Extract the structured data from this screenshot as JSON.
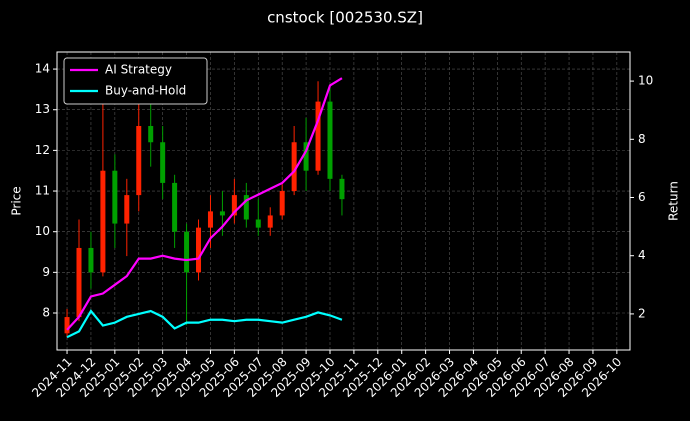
{
  "chart_data": {
    "type": "candlestick",
    "title": "cnstock [002530.SZ]",
    "ylabel": "Price",
    "y2label": "Return",
    "background": "#000000",
    "text_color": "#ffffff",
    "grid": true,
    "legend": "upper left",
    "up_color": "#ff2200",
    "down_color": "#00a000",
    "xlim": [
      -0.42,
      23.55
    ],
    "xticks": [
      {
        "value": 0,
        "label": "2024-11"
      },
      {
        "value": 1,
        "label": "2024-12"
      },
      {
        "value": 2,
        "label": "2025-01"
      },
      {
        "value": 3,
        "label": "2025-02"
      },
      {
        "value": 4,
        "label": "2025-03"
      },
      {
        "value": 5,
        "label": "2025-04"
      },
      {
        "value": 6,
        "label": "2025-05"
      },
      {
        "value": 7,
        "label": "2025-06"
      },
      {
        "value": 8,
        "label": "2025-07"
      },
      {
        "value": 9,
        "label": "2025-08"
      },
      {
        "value": 10,
        "label": "2025-09"
      },
      {
        "value": 11,
        "label": "2025-10"
      },
      {
        "value": 12,
        "label": "2025-11"
      },
      {
        "value": 13,
        "label": "2025-12"
      },
      {
        "value": 14,
        "label": "2026-01"
      },
      {
        "value": 15,
        "label": "2026-02"
      },
      {
        "value": 16,
        "label": "2026-03"
      },
      {
        "value": 17,
        "label": "2026-04"
      },
      {
        "value": 18,
        "label": "2026-05"
      },
      {
        "value": 19,
        "label": "2026-06"
      },
      {
        "value": 20,
        "label": "2026-07"
      },
      {
        "value": 21,
        "label": "2026-08"
      },
      {
        "value": 22,
        "label": "2026-09"
      },
      {
        "value": 23,
        "label": "2026-10"
      }
    ],
    "ylim": [
      7.09,
      14.42
    ],
    "yticks": [
      8,
      9,
      10,
      11,
      12,
      13,
      14
    ],
    "y2lim": [
      0.76,
      11.0
    ],
    "y2ticks": [
      2,
      4,
      6,
      8,
      10
    ],
    "x": [
      0,
      0.5,
      1,
      1.5,
      2,
      2.5,
      3,
      3.5,
      4,
      4.5,
      5,
      5.5,
      6,
      6.5,
      7,
      7.5,
      8,
      8.5,
      9,
      9.5,
      10,
      10.5,
      11,
      11.5
    ],
    "open": [
      7.5,
      7.9,
      9.6,
      9.0,
      11.5,
      10.2,
      10.9,
      12.6,
      12.2,
      11.2,
      10.0,
      9.0,
      10.1,
      10.5,
      10.4,
      10.9,
      10.3,
      10.1,
      10.4,
      11.0,
      12.2,
      11.5,
      13.2,
      11.3
    ],
    "high": [
      8.1,
      10.3,
      10.0,
      13.5,
      11.9,
      11.3,
      13.4,
      13.7,
      12.6,
      11.4,
      10.2,
      10.3,
      10.9,
      11.0,
      11.3,
      11.2,
      10.8,
      10.6,
      11.2,
      12.6,
      12.8,
      13.7,
      13.6,
      11.4
    ],
    "low": [
      7.4,
      7.8,
      8.6,
      8.9,
      9.6,
      9.4,
      10.5,
      11.6,
      10.8,
      9.6,
      7.7,
      8.8,
      9.6,
      9.9,
      10.2,
      10.1,
      9.9,
      9.9,
      10.3,
      10.9,
      11.0,
      11.4,
      11.0,
      10.4
    ],
    "close": [
      7.9,
      9.6,
      9.0,
      11.5,
      10.2,
      10.9,
      12.6,
      12.2,
      11.2,
      10.0,
      9.0,
      10.1,
      10.5,
      10.4,
      10.9,
      10.3,
      10.1,
      10.4,
      11.0,
      12.2,
      11.5,
      13.2,
      11.3,
      10.8
    ],
    "series": [
      {
        "name": "AI Strategy",
        "color": "#ff00ff",
        "axis": "y2",
        "values": [
          1.45,
          1.9,
          2.6,
          2.7,
          3.0,
          3.3,
          3.9,
          3.9,
          4.0,
          3.9,
          3.85,
          3.9,
          4.6,
          5.0,
          5.5,
          5.9,
          6.1,
          6.3,
          6.5,
          6.9,
          7.6,
          8.65,
          9.85,
          10.1
        ]
      },
      {
        "name": "Buy-and-Hold",
        "color": "#00ffff",
        "axis": "y2",
        "values": [
          1.2,
          1.4,
          2.1,
          1.6,
          1.7,
          1.9,
          2.0,
          2.1,
          1.9,
          1.5,
          1.7,
          1.7,
          1.8,
          1.8,
          1.75,
          1.8,
          1.8,
          1.75,
          1.7,
          1.8,
          1.9,
          2.05,
          1.95,
          1.8
        ]
      }
    ]
  }
}
